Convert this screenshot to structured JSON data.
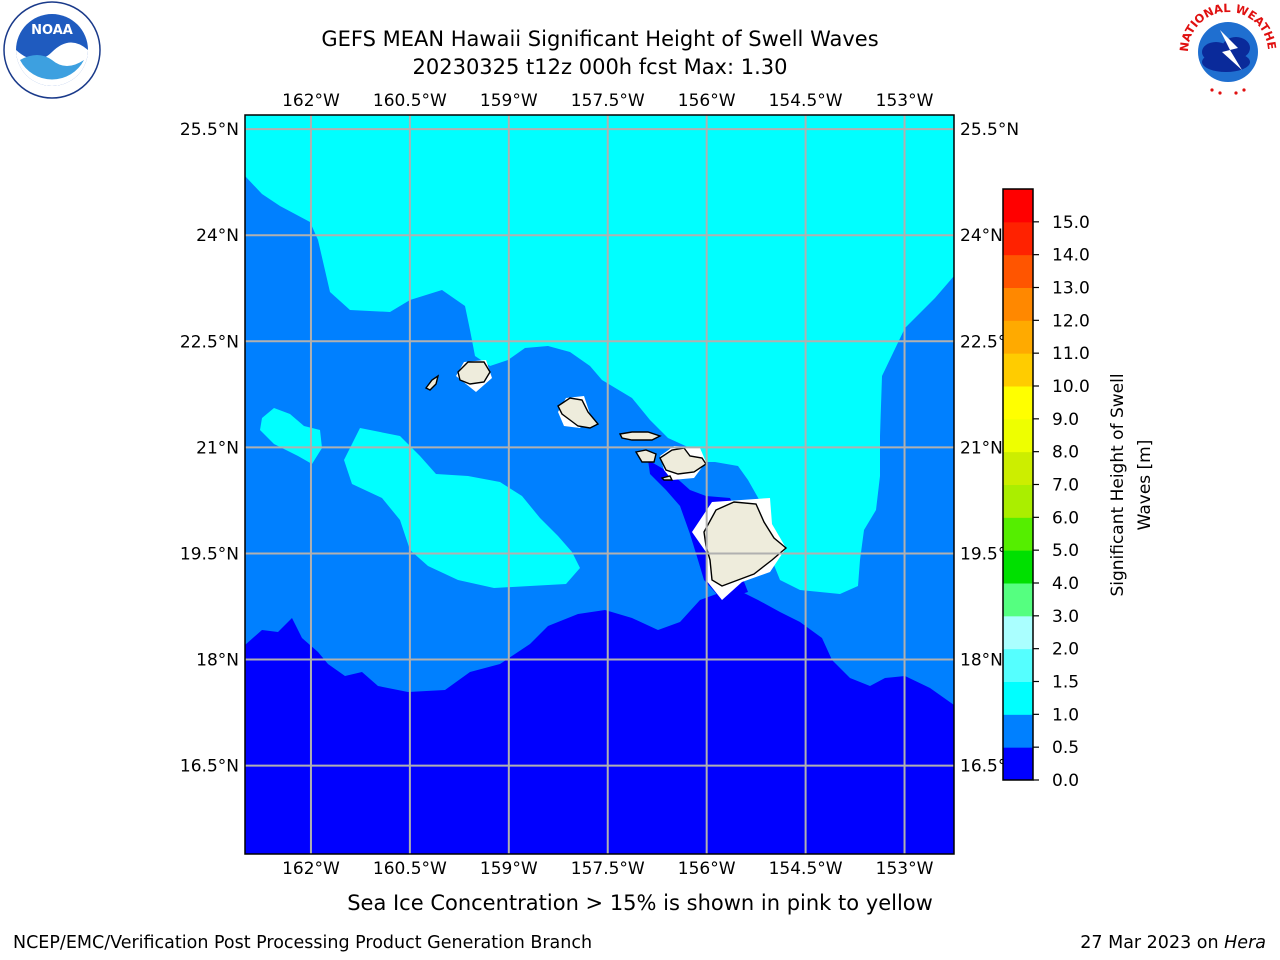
{
  "title_line1": "GEFS MEAN Hawaii Significant Height of Swell Waves",
  "title_line2": "20230325 t12z 000h fcst   Max: 1.30",
  "map": {
    "lon_labels": [
      "162°W",
      "160.5°W",
      "159°W",
      "157.5°W",
      "156°W",
      "154.5°W",
      "153°W"
    ],
    "lat_labels": [
      "25.5°N",
      "24°N",
      "22.5°N",
      "21°N",
      "19.5°N",
      "18°N",
      "16.5°N"
    ],
    "lat_values": [
      25.5,
      24,
      22.5,
      21,
      19.5,
      18,
      16.5
    ],
    "lon_values": [
      -162,
      -160.5,
      -159,
      -157.5,
      -156,
      -154.5,
      -153
    ],
    "lon_range": [
      -163,
      -152.25
    ],
    "lat_range": [
      15.25,
      25.7
    ],
    "colors": {
      "land": "#eeecdc",
      "ocean_0_05": "#0000ff",
      "ocean_05_10": "#0080ff",
      "ocean_10_15": "#00ffff",
      "grid": "#b0b0b0"
    }
  },
  "colorbar": {
    "label": "Significant Height of Swell Waves [m]",
    "label_line1": "Significant Height of Swell",
    "label_line2": "Waves [m]",
    "ticks": [
      "0.0",
      "0.5",
      "1.0",
      "1.5",
      "2.0",
      "3.0",
      "4.0",
      "5.0",
      "6.0",
      "7.0",
      "8.0",
      "9.0",
      "10.0",
      "11.0",
      "12.0",
      "13.0",
      "14.0",
      "15.0"
    ],
    "colors": [
      "#0000ff",
      "#0080ff",
      "#00ffff",
      "#55ffff",
      "#aaffff",
      "#55ff80",
      "#00e000",
      "#55ee00",
      "#aaee00",
      "#ccee00",
      "#eeff00",
      "#ffff00",
      "#ffcc00",
      "#ffaa00",
      "#ff8800",
      "#ff5500",
      "#ff2200",
      "#ff0000"
    ]
  },
  "footer": {
    "note": "Sea Ice Concentration > 15% is shown in pink to yellow",
    "left": "NCEP/EMC/Verification Post Processing Product Generation Branch",
    "right_prefix": "27 Mar 2023 on ",
    "right_host": "Hera"
  },
  "logos": {
    "noaa_text": "NOAA",
    "nws_text": "NATIONAL WEATHER SERVICE"
  }
}
